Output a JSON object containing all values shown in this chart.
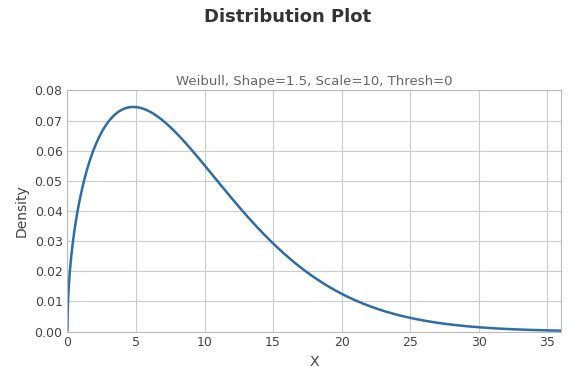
{
  "title": "Distribution Plot",
  "subtitle": "Weibull, Shape=1.5, Scale=10, Thresh=0",
  "xlabel": "X",
  "ylabel": "Density",
  "shape": 1.5,
  "scale": 10,
  "thresh": 0,
  "x_min": 0,
  "x_max": 36,
  "y_min": 0.0,
  "y_max": 0.08,
  "line_color": "#2e6da4",
  "line_width": 1.8,
  "background_color": "#ffffff",
  "grid_color": "#cccccc",
  "title_fontsize": 13,
  "subtitle_fontsize": 9.5,
  "axis_label_fontsize": 10,
  "tick_fontsize": 9,
  "xticks": [
    0,
    5,
    10,
    15,
    20,
    25,
    30,
    35
  ],
  "yticks": [
    0.0,
    0.01,
    0.02,
    0.03,
    0.04,
    0.05,
    0.06,
    0.07,
    0.08
  ]
}
